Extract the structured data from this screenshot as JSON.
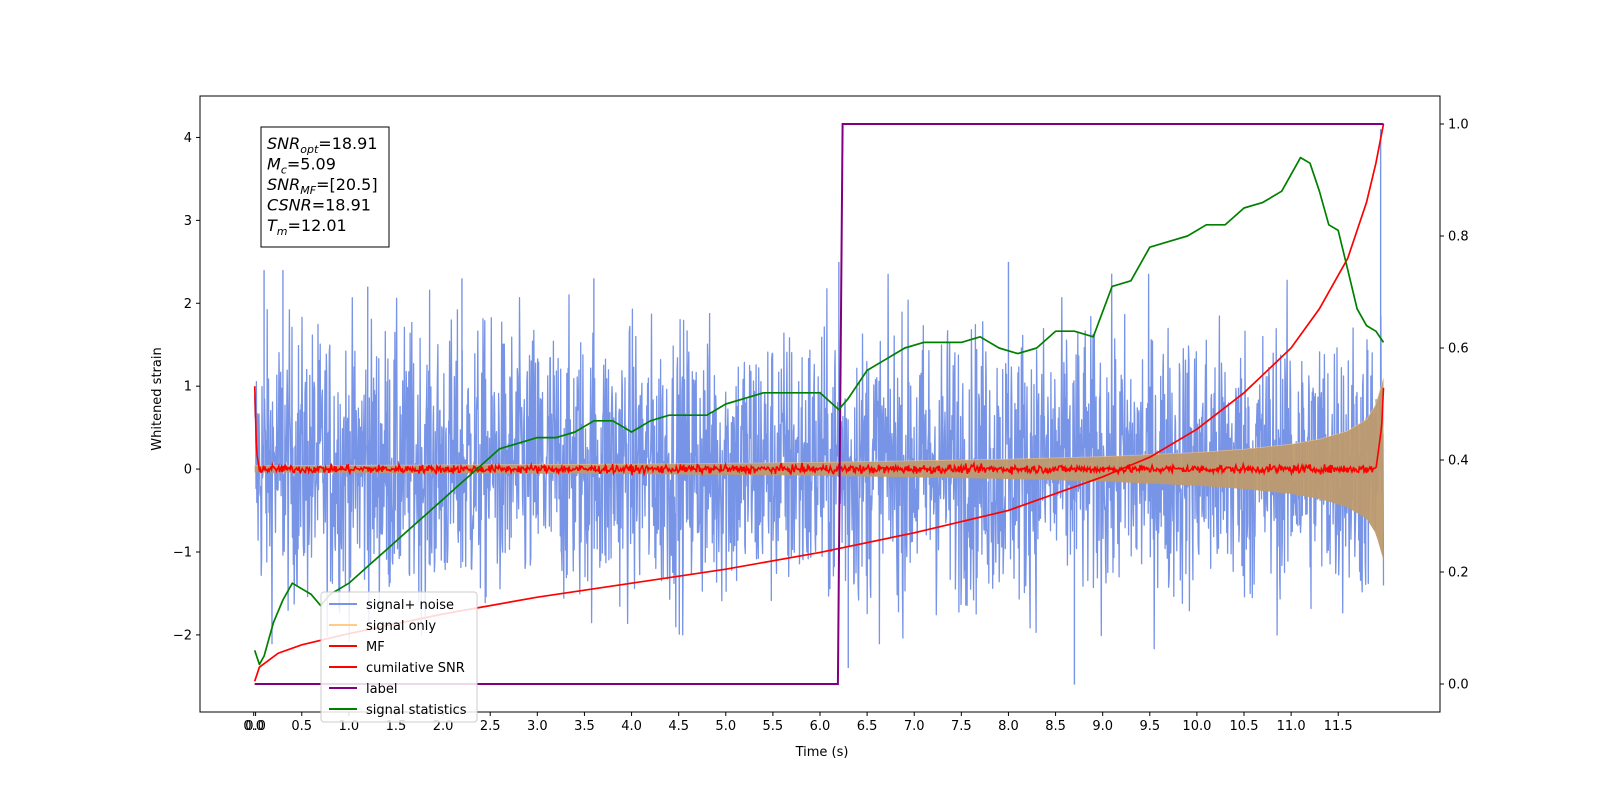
{
  "chart_data": {
    "type": "line",
    "xlabel": "Time (s)",
    "ylabel": "Whitened strain",
    "y2label": "",
    "xlim": [
      -0.58,
      12.58
    ],
    "ylim": [
      -2.93,
      4.5
    ],
    "y2lim": [
      -0.05,
      1.05
    ],
    "xticks": [
      0.0,
      0.5,
      1.0,
      1.5,
      2.0,
      2.5,
      3.0,
      3.5,
      4.0,
      4.5,
      5.0,
      5.5,
      6.0,
      6.5,
      7.0,
      7.5,
      8.0,
      8.5,
      9.0,
      9.5,
      10.0,
      10.5,
      11.0,
      11.5
    ],
    "xtick_labels": [
      "0.0",
      "0.0",
      "0.5",
      "1.0",
      "1.5",
      "2.0",
      "2.5",
      "3.0",
      "3.5",
      "4.0",
      "4.5",
      "5.0",
      "5.5",
      "6.0",
      "6.5",
      "7.0",
      "7.5",
      "8.0",
      "8.5",
      "9.0",
      "9.5",
      "10.0",
      "10.5",
      "11.0",
      "11.5"
    ],
    "xtick_positions": [
      -0.01,
      0.01,
      0.5,
      1.0,
      1.5,
      2.0,
      2.5,
      3.0,
      3.5,
      4.0,
      4.5,
      5.0,
      5.5,
      6.0,
      6.5,
      7.0,
      7.5,
      8.0,
      8.5,
      9.0,
      9.5,
      10.0,
      10.5,
      11.0,
      11.5
    ],
    "yticks": [
      -2,
      -1,
      0,
      1,
      2,
      3,
      4
    ],
    "ytick_labels": [
      "−2",
      "−1",
      "0",
      "1",
      "2",
      "3",
      "4"
    ],
    "y2ticks": [
      0.0,
      0.2,
      0.4,
      0.6,
      0.8,
      1.0
    ],
    "y2tick_labels": [
      "0.0",
      "0.2",
      "0.4",
      "0.6",
      "0.8",
      "1.0"
    ],
    "legend_position": "lower-left",
    "annotation": {
      "lines": [
        {
          "base": "SNR",
          "sub": "opt",
          "value": "=18.91"
        },
        {
          "base": "M",
          "sub": "c",
          "value": "=5.09"
        },
        {
          "base": "SNR",
          "sub": "MF",
          "value": "=[20.5]"
        },
        {
          "base": "CSNR",
          "sub": "",
          "value": "=18.91"
        },
        {
          "base": "T",
          "sub": "m",
          "value": "=12.01"
        }
      ]
    },
    "series": [
      {
        "name": "signal+ noise",
        "axis": "left",
        "color": "#7894e6",
        "description": "whitened data, noise band roughly between -1.9 and 2.0 with spikes up to about 2.6 and down to about -2.6",
        "band_low": -1.9,
        "band_high": 2.0,
        "spikes_x": [
          0.1,
          0.3,
          1.2,
          2.2,
          3.6,
          6.2,
          6.3,
          8.0,
          8.7,
          11.95
        ],
        "spikes_y": [
          2.4,
          2.4,
          2.2,
          2.3,
          2.3,
          2.5,
          -2.4,
          2.5,
          -2.6,
          4.1
        ]
      },
      {
        "name": "signal only",
        "axis": "left",
        "color": "#ffcc88",
        "description": "chirp envelope amplitude growing toward merger",
        "x": [
          0.0,
          1.0,
          2.0,
          3.0,
          4.0,
          5.0,
          6.0,
          7.0,
          8.0,
          9.0,
          10.0,
          10.5,
          11.0,
          11.3,
          11.6,
          11.8,
          11.9,
          11.98
        ],
        "envelope": [
          0.04,
          0.045,
          0.05,
          0.055,
          0.06,
          0.07,
          0.08,
          0.1,
          0.12,
          0.15,
          0.2,
          0.24,
          0.3,
          0.36,
          0.46,
          0.6,
          0.78,
          1.1
        ]
      },
      {
        "name": "MF",
        "axis": "left",
        "color": "#ff0000",
        "description": "matched-filter output, near 0 with small jitter, spiking to about 1 at both edges",
        "x": [
          0.0,
          0.02,
          0.05,
          1.0,
          3.0,
          6.0,
          9.0,
          11.9,
          11.96,
          11.98
        ],
        "y": [
          1.0,
          0.2,
          0.0,
          0.0,
          0.0,
          0.0,
          0.0,
          0.0,
          0.5,
          0.98
        ]
      },
      {
        "name": "cumilative SNR",
        "axis": "right",
        "color": "#ff0000",
        "x": [
          0.0,
          0.05,
          0.25,
          0.5,
          1.0,
          2.0,
          3.0,
          4.0,
          5.0,
          6.0,
          7.0,
          8.0,
          8.5,
          9.0,
          9.5,
          10.0,
          10.5,
          11.0,
          11.3,
          11.6,
          11.8,
          11.9,
          11.98
        ],
        "y": [
          0.005,
          0.03,
          0.055,
          0.07,
          0.09,
          0.125,
          0.155,
          0.18,
          0.205,
          0.235,
          0.27,
          0.31,
          0.34,
          0.37,
          0.405,
          0.455,
          0.52,
          0.6,
          0.67,
          0.76,
          0.86,
          0.93,
          1.0
        ]
      },
      {
        "name": "label",
        "axis": "right",
        "color": "#800080",
        "x": [
          0.0,
          6.19,
          6.24,
          11.98
        ],
        "y": [
          0.0,
          0.0,
          1.0,
          1.0
        ]
      },
      {
        "name": "signal statistics",
        "axis": "right",
        "color": "#008000",
        "x": [
          0.0,
          0.05,
          0.1,
          0.2,
          0.3,
          0.4,
          0.5,
          0.6,
          0.7,
          0.8,
          0.9,
          1.0,
          1.2,
          1.4,
          1.6,
          1.8,
          2.0,
          2.2,
          2.4,
          2.6,
          2.8,
          3.0,
          3.2,
          3.4,
          3.6,
          3.8,
          4.0,
          4.2,
          4.4,
          4.6,
          4.8,
          5.0,
          5.2,
          5.4,
          5.6,
          5.8,
          6.0,
          6.2,
          6.3,
          6.5,
          6.7,
          6.9,
          7.1,
          7.3,
          7.5,
          7.7,
          7.9,
          8.1,
          8.3,
          8.5,
          8.7,
          8.9,
          9.1,
          9.3,
          9.5,
          9.7,
          9.9,
          10.1,
          10.3,
          10.5,
          10.7,
          10.9,
          11.0,
          11.1,
          11.2,
          11.3,
          11.4,
          11.5,
          11.6,
          11.7,
          11.8,
          11.9,
          11.98
        ],
        "y": [
          0.06,
          0.035,
          0.05,
          0.11,
          0.15,
          0.18,
          0.17,
          0.16,
          0.14,
          0.16,
          0.17,
          0.18,
          0.21,
          0.24,
          0.27,
          0.3,
          0.33,
          0.36,
          0.39,
          0.42,
          0.43,
          0.44,
          0.44,
          0.45,
          0.47,
          0.47,
          0.45,
          0.47,
          0.48,
          0.48,
          0.48,
          0.5,
          0.51,
          0.52,
          0.52,
          0.52,
          0.52,
          0.49,
          0.51,
          0.56,
          0.58,
          0.6,
          0.61,
          0.61,
          0.61,
          0.62,
          0.6,
          0.59,
          0.6,
          0.63,
          0.63,
          0.62,
          0.71,
          0.72,
          0.78,
          0.79,
          0.8,
          0.82,
          0.82,
          0.85,
          0.86,
          0.88,
          0.91,
          0.94,
          0.93,
          0.88,
          0.82,
          0.81,
          0.74,
          0.67,
          0.64,
          0.63,
          0.61
        ]
      }
    ]
  }
}
